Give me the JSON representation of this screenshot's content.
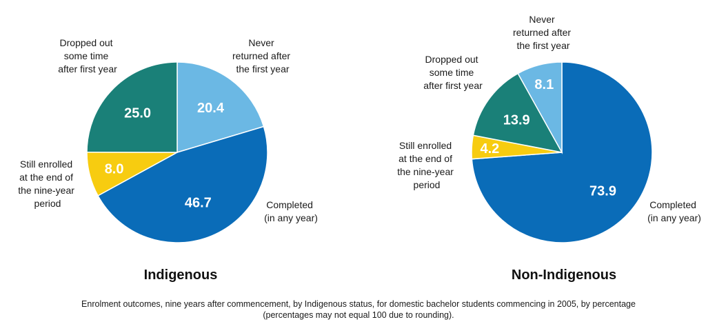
{
  "chart_data": [
    {
      "type": "pie",
      "title": "Indigenous",
      "slices": [
        {
          "label": "Never returned after the first year",
          "value": 20.4,
          "value_label": "20.4",
          "color": "#6bb8e4"
        },
        {
          "label": "Completed (in any year)",
          "value": 46.7,
          "value_label": "46.7",
          "color": "#0a6cb8"
        },
        {
          "label": "Still enrolled at the end of the nine-year period",
          "value": 8.0,
          "value_label": "8.0",
          "color": "#f7cc10"
        },
        {
          "label": "Dropped out some time after first year",
          "value": 25.0,
          "value_label": "25.0",
          "color": "#1a8078"
        }
      ]
    },
    {
      "type": "pie",
      "title": "Non-Indigenous",
      "slices": [
        {
          "label": "Completed (in any year)",
          "value": 73.9,
          "value_label": "73.9",
          "color": "#0a6cb8"
        },
        {
          "label": "Still enrolled at the end of the nine-year period",
          "value": 4.2,
          "value_label": "4.2",
          "color": "#f7cc10"
        },
        {
          "label": "Dropped out some time after first year",
          "value": 13.9,
          "value_label": "13.9",
          "color": "#1a8078"
        },
        {
          "label": "Never returned after the first year",
          "value": 8.1,
          "value_label": "8.1",
          "color": "#6bb8e4"
        }
      ]
    }
  ],
  "labels": {
    "indigenous": {
      "dropped": [
        "Dropped out",
        "some time",
        "after first year"
      ],
      "never": [
        "Never",
        "returned after",
        "the first year"
      ],
      "enrolled": [
        "Still enrolled",
        "at the end of",
        "the nine-year",
        "period"
      ],
      "completed": [
        "Completed",
        "(in any year)"
      ]
    },
    "non_indigenous": {
      "never": [
        "Never",
        "returned after",
        "the first year"
      ],
      "dropped": [
        "Dropped out",
        "some time",
        "after first year"
      ],
      "enrolled": [
        "Still enrolled",
        "at the end of",
        "the nine-year",
        "period"
      ],
      "completed": [
        "Completed",
        "(in any year)"
      ]
    }
  },
  "caption": {
    "line1": "Enrolment outcomes, nine years after commencement, by Indigenous status, for domestic bachelor students commencing in 2005, by percentage",
    "line2": "(percentages may not equal 100 due to rounding)."
  }
}
